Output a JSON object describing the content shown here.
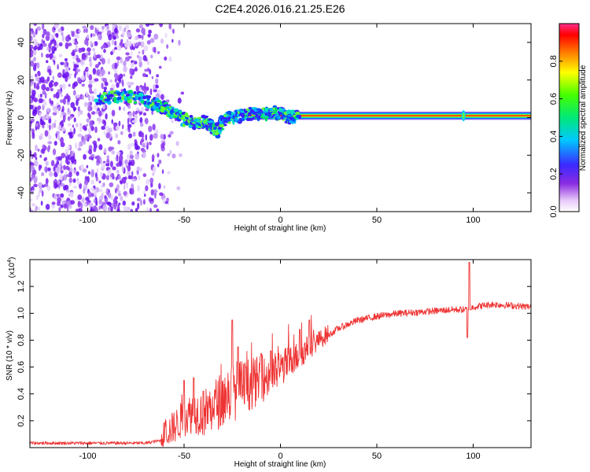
{
  "figure_title": "C2E4.2026.016.21.25.E26",
  "chart_data": [
    {
      "type": "heatmap",
      "title": "C2E4.2026.016.21.25.E26",
      "xlabel": "Height of straight line (km)",
      "ylabel": "Frequency (Hz)",
      "xlim": [
        -130,
        130
      ],
      "ylim": [
        -50,
        50
      ],
      "xticks": [
        -100,
        -50,
        0,
        50,
        100
      ],
      "xtick_labels": [
        "-100",
        "-50",
        "0",
        "50",
        "100"
      ],
      "yticks": [
        -40,
        -20,
        0,
        20,
        40
      ],
      "ytick_labels": [
        "-40",
        "-20",
        "0",
        "20",
        "40"
      ],
      "colorbar": {
        "label": "Normalized spectral amplitude",
        "range": [
          0,
          1
        ],
        "ticks": [
          0.0,
          0.2,
          0.4,
          0.6,
          0.8
        ],
        "tick_labels": [
          "0.0",
          "0.2",
          "0.4",
          "0.6",
          "0.8"
        ],
        "colormap": "rainbow (white to violet to blue to cyan to green to yellow to red to magenta)"
      },
      "features": {
        "noise_region_x": [
          -130,
          -58
        ],
        "ridge_path": [
          [
            -95,
            10
          ],
          [
            -88,
            11
          ],
          [
            -80,
            12
          ],
          [
            -72,
            10
          ],
          [
            -65,
            7
          ],
          [
            -60,
            5
          ],
          [
            -55,
            2
          ],
          [
            -50,
            -1
          ],
          [
            -45,
            -3
          ],
          [
            -40,
            -2
          ],
          [
            -36,
            -4
          ],
          [
            -33,
            -8
          ],
          [
            -30,
            -2
          ],
          [
            -26,
            0
          ],
          [
            -20,
            1
          ],
          [
            -15,
            2
          ],
          [
            -8,
            2
          ],
          [
            -4,
            3
          ],
          [
            0,
            2
          ],
          [
            4,
            0
          ],
          [
            8,
            1
          ],
          [
            20,
            1
          ],
          [
            60,
            1
          ],
          [
            100,
            1
          ],
          [
            130,
            1
          ]
        ],
        "steady_line_x": [
          -20,
          130
        ],
        "steady_line_frequency": 1,
        "glitch_x": 95
      }
    },
    {
      "type": "line",
      "title": "",
      "xlabel": "Height of straight line (km)",
      "ylabel": "SNR (10 * v/v)",
      "y_multiplier": "(x10",
      "y_multiplier_exponent": "4",
      "y_multiplier_close": ")",
      "y_units": "x10^4",
      "xlim": [
        -130,
        130
      ],
      "ylim": [
        0,
        1.4
      ],
      "xticks": [
        -100,
        -50,
        0,
        50,
        100
      ],
      "xtick_labels": [
        "-100",
        "-50",
        "0",
        "50",
        "100"
      ],
      "yticks": [
        0.2,
        0.4,
        0.6,
        0.8,
        1.0,
        1.2
      ],
      "ytick_labels": [
        "0.2",
        "0.4",
        "0.6",
        "0.8",
        "1.0",
        "1.2"
      ],
      "series": [
        {
          "name": "SNR",
          "color": "#ee3333",
          "envelope_x": [
            -130,
            -70,
            -62,
            -55,
            -50,
            -45,
            -40,
            -35,
            -30,
            -25,
            -20,
            -15,
            -10,
            -5,
            0,
            5,
            10,
            15,
            20,
            25,
            30,
            40,
            50,
            60,
            70,
            80,
            90,
            95,
            98,
            100,
            105,
            110,
            120,
            130
          ],
          "envelope_y": [
            0.03,
            0.03,
            0.05,
            0.12,
            0.18,
            0.22,
            0.2,
            0.25,
            0.3,
            0.35,
            0.38,
            0.42,
            0.45,
            0.48,
            0.55,
            0.6,
            0.66,
            0.72,
            0.78,
            0.83,
            0.88,
            0.94,
            0.97,
            0.99,
            1.0,
            1.01,
            1.02,
            1.02,
            1.02,
            1.04,
            1.05,
            1.06,
            1.05,
            1.04
          ],
          "spikes": [
            [
              -50,
              0.5
            ],
            [
              -45,
              0.52
            ],
            [
              -40,
              0.42
            ],
            [
              -25,
              0.95
            ],
            [
              -22,
              0.75
            ],
            [
              -18,
              0.6
            ],
            [
              -10,
              0.7
            ],
            [
              -5,
              0.72
            ],
            [
              10,
              0.88
            ],
            [
              15,
              0.95
            ],
            [
              98,
              1.38
            ],
            [
              97,
              0.82
            ]
          ]
        }
      ]
    }
  ]
}
